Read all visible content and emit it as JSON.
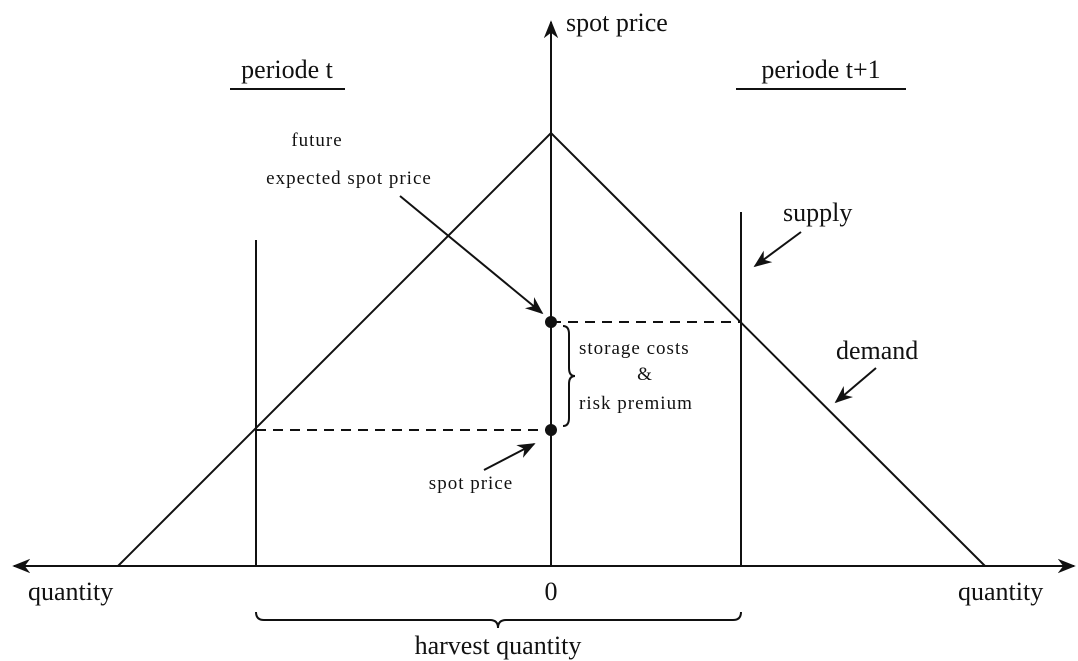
{
  "axis": {
    "y_label": "spot price",
    "x_left_label": "quantity",
    "x_right_label": "quantity",
    "origin_label": "0"
  },
  "periods": {
    "left": "periode t",
    "right": "periode t+1"
  },
  "annotations": {
    "future_line1": "future",
    "future_line2": "expected spot price",
    "supply": "supply",
    "demand": "demand",
    "premium_line1": "storage costs",
    "premium_line2": "&",
    "premium_line3": "risk premium",
    "spot_price": "spot price",
    "harvest": "harvest quantity"
  }
}
